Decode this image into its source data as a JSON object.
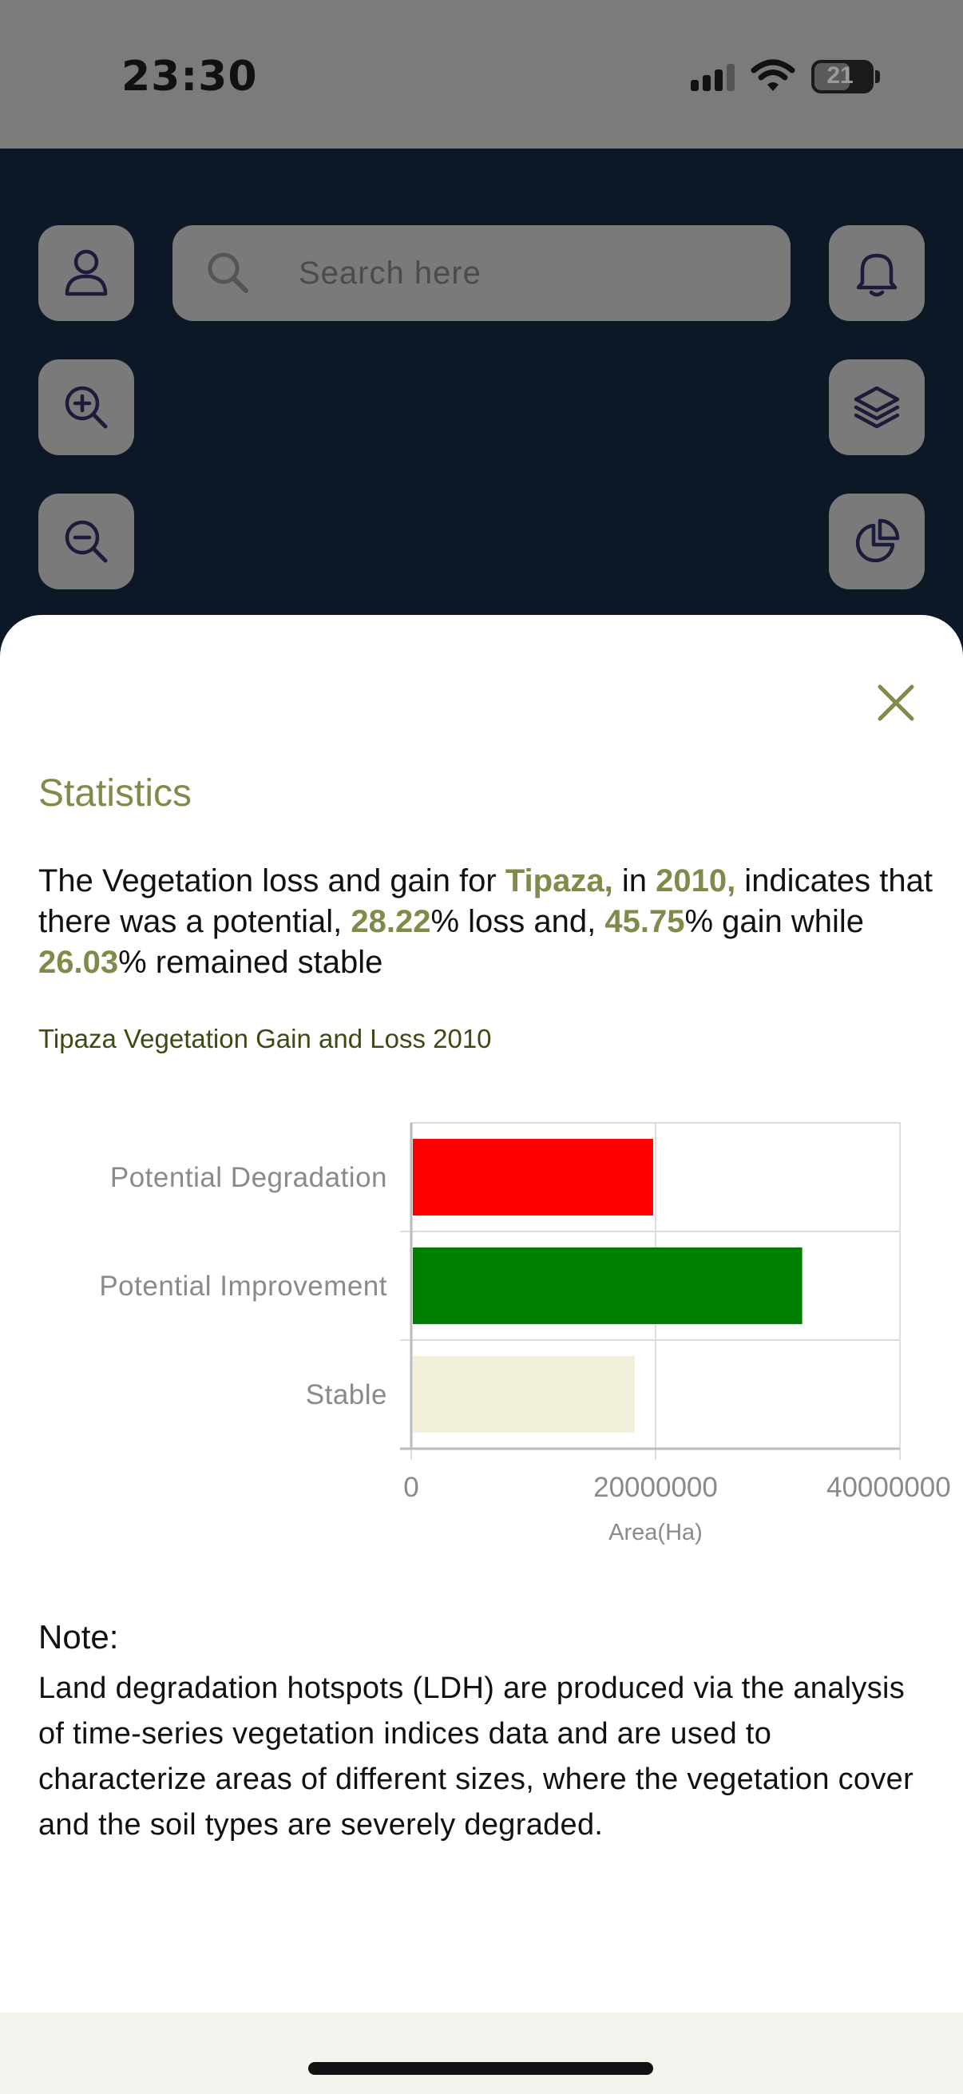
{
  "status_bar": {
    "time": "23:30",
    "battery": "21"
  },
  "search": {
    "placeholder": "Search here"
  },
  "map_controls": {
    "left": [
      "profile-icon",
      "zoom-in-icon",
      "zoom-out-icon"
    ],
    "right": [
      "bell-icon",
      "layers-icon",
      "pie-chart-icon"
    ]
  },
  "sheet": {
    "title": "Statistics",
    "summary": {
      "t1": "The Vegetation loss and gain for ",
      "region": "Tipaza,",
      "t2": " in ",
      "year": "2010,",
      "t3": " indicates that there was a potential, ",
      "loss": "28.22",
      "t4": "% loss and, ",
      "gain": "45.75",
      "t5": "% gain while ",
      "stable": "26.03",
      "t6": "% remained stable"
    },
    "chart_title": "Tipaza Vegetation Gain and Loss 2010",
    "note_heading": "Note:",
    "note_body": "Land degradation hotspots (LDH) are produced via the analysis of time-series vegetation indices data and are used to characterize areas of different sizes, where the vegetation cover and the soil types are severely degraded."
  },
  "colors": {
    "accent": "#7e8c4a",
    "degradation": "#ff0000",
    "improvement": "#008000",
    "stable": "#f2f0da"
  },
  "chart_data": {
    "type": "bar",
    "orientation": "horizontal",
    "title": "Tipaza Vegetation Gain and Loss 2010",
    "xlabel": "Area(Ha)",
    "ylabel": "",
    "categories": [
      "Potential Degradation",
      "Potential Improvement",
      "Stable"
    ],
    "values": [
      19800000,
      32000000,
      18300000
    ],
    "bar_colors": [
      "#ff0000",
      "#008000",
      "#f2f0da"
    ],
    "xlim": [
      0,
      40000000
    ],
    "xticks": [
      "0",
      "20000000",
      "40000000"
    ],
    "grid": true
  }
}
